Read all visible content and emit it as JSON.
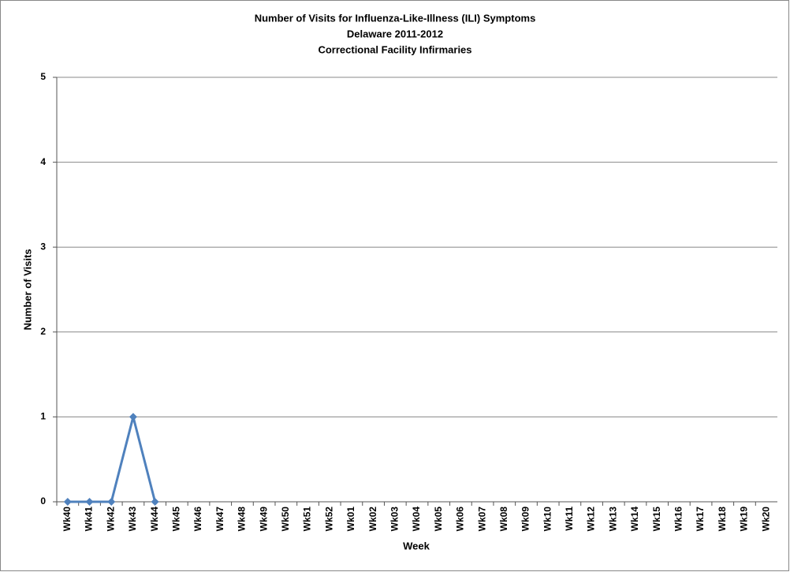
{
  "chart_data": {
    "type": "line",
    "title_lines": [
      "Number of Visits for Influenza-Like-Illness  (ILI) Symptoms",
      "Delaware 2011-2012",
      "Correctional Facility Infirmaries"
    ],
    "x_label": "Week",
    "y_label": "Number of Visits",
    "categories": [
      "Wk40",
      "Wk41",
      "Wk42",
      "Wk43",
      "Wk44",
      "Wk45",
      "Wk46",
      "Wk47",
      "Wk48",
      "Wk49",
      "Wk50",
      "Wk51",
      "Wk52",
      "Wk01",
      "Wk02",
      "Wk03",
      "Wk04",
      "Wk05",
      "Wk06",
      "Wk07",
      "Wk08",
      "Wk09",
      "Wk10",
      "Wk11",
      "Wk12",
      "Wk13",
      "Wk14",
      "Wk15",
      "Wk16",
      "Wk17",
      "Wk18",
      "Wk19",
      "Wk20"
    ],
    "series": [
      {
        "color": "#4f81bd",
        "values": [
          0,
          0,
          0,
          1,
          0,
          null,
          null,
          null,
          null,
          null,
          null,
          null,
          null,
          null,
          null,
          null,
          null,
          null,
          null,
          null,
          null,
          null,
          null,
          null,
          null,
          null,
          null,
          null,
          null,
          null,
          null,
          null,
          null
        ]
      }
    ],
    "ylim": [
      0,
      5
    ],
    "yticks": [
      0,
      1,
      2,
      3,
      4,
      5
    ],
    "grid": true
  }
}
